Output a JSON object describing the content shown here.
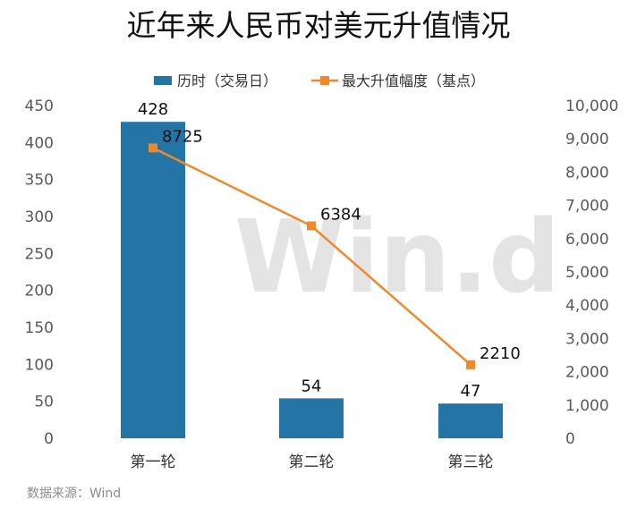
{
  "chart_data": {
    "type": "bar",
    "title": "近年来人民币对美元升值情况",
    "categories": [
      "第一轮",
      "第二轮",
      "第三轮"
    ],
    "series": [
      {
        "name": "历时（交易日）",
        "kind": "bar",
        "axis": "left",
        "values": [
          428,
          54,
          47
        ],
        "color": "#2474a6"
      },
      {
        "name": "最大升值幅度（基点）",
        "kind": "line",
        "axis": "right",
        "values": [
          8725,
          6384,
          2210
        ],
        "color": "#ed8a2e"
      }
    ],
    "y_left": {
      "min": 0,
      "max": 450,
      "step": 50,
      "ticks": [
        "0",
        "50",
        "100",
        "150",
        "200",
        "250",
        "300",
        "350",
        "400",
        "450"
      ]
    },
    "y_right": {
      "min": 0,
      "max": 10000,
      "step": 1000,
      "ticks": [
        "0",
        "1,000",
        "2,000",
        "3,000",
        "4,000",
        "5,000",
        "6,000",
        "7,000",
        "8,000",
        "9,000",
        "10,000"
      ]
    },
    "legend_position": "top",
    "grid": false
  },
  "source_note": "数据来源：Wind",
  "watermark": "Win.d"
}
